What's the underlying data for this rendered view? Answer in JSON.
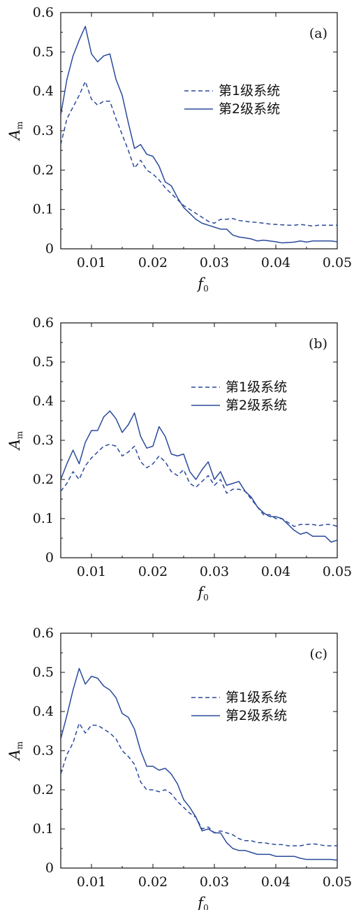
{
  "colors": {
    "line": "#2a4a9b",
    "axis": "#111111"
  },
  "chart_data": [
    {
      "type": "line",
      "panel_label": "(a)",
      "xlabel": "f0",
      "ylabel": "Am",
      "xlim": [
        0.005,
        0.05
      ],
      "ylim": [
        0,
        0.6
      ],
      "xticks": [
        "0.01",
        "0.02",
        "0.03",
        "0.04",
        "0.05"
      ],
      "yticks": [
        "0",
        "0.1",
        "0.2",
        "0.3",
        "0.4",
        "0.5",
        "0.6"
      ],
      "legend_position": "center-right",
      "series": [
        {
          "name": "第1级系统",
          "style": "dashed",
          "x": [
            0.005,
            0.006,
            0.007,
            0.008,
            0.009,
            0.01,
            0.011,
            0.012,
            0.013,
            0.014,
            0.015,
            0.016,
            0.017,
            0.018,
            0.019,
            0.02,
            0.021,
            0.022,
            0.023,
            0.024,
            0.025,
            0.026,
            0.027,
            0.028,
            0.029,
            0.03,
            0.031,
            0.032,
            0.033,
            0.034,
            0.035,
            0.036,
            0.037,
            0.038,
            0.039,
            0.04,
            0.041,
            0.042,
            0.043,
            0.044,
            0.045,
            0.046,
            0.047,
            0.048,
            0.049,
            0.05
          ],
          "y": [
            0.265,
            0.33,
            0.36,
            0.39,
            0.425,
            0.38,
            0.365,
            0.375,
            0.375,
            0.33,
            0.29,
            0.25,
            0.205,
            0.225,
            0.2,
            0.19,
            0.175,
            0.155,
            0.14,
            0.125,
            0.11,
            0.1,
            0.09,
            0.08,
            0.07,
            0.065,
            0.075,
            0.075,
            0.077,
            0.072,
            0.07,
            0.068,
            0.067,
            0.065,
            0.063,
            0.062,
            0.061,
            0.06,
            0.06,
            0.062,
            0.06,
            0.058,
            0.06,
            0.06,
            0.06,
            0.06
          ]
        },
        {
          "name": "第2级系统",
          "style": "solid",
          "x": [
            0.005,
            0.006,
            0.007,
            0.008,
            0.009,
            0.01,
            0.011,
            0.012,
            0.013,
            0.014,
            0.015,
            0.016,
            0.017,
            0.018,
            0.019,
            0.02,
            0.021,
            0.022,
            0.023,
            0.024,
            0.025,
            0.026,
            0.027,
            0.028,
            0.029,
            0.03,
            0.031,
            0.032,
            0.033,
            0.034,
            0.035,
            0.036,
            0.037,
            0.038,
            0.039,
            0.04,
            0.041,
            0.042,
            0.043,
            0.044,
            0.045,
            0.046,
            0.047,
            0.048,
            0.049,
            0.05
          ],
          "y": [
            0.34,
            0.43,
            0.49,
            0.53,
            0.565,
            0.495,
            0.475,
            0.49,
            0.495,
            0.43,
            0.39,
            0.32,
            0.255,
            0.265,
            0.24,
            0.235,
            0.21,
            0.17,
            0.16,
            0.13,
            0.105,
            0.09,
            0.075,
            0.065,
            0.06,
            0.055,
            0.05,
            0.05,
            0.035,
            0.03,
            0.028,
            0.025,
            0.02,
            0.022,
            0.02,
            0.018,
            0.015,
            0.016,
            0.017,
            0.02,
            0.017,
            0.02,
            0.02,
            0.02,
            0.02,
            0.018
          ]
        }
      ]
    },
    {
      "type": "line",
      "panel_label": "(b)",
      "xlabel": "f0",
      "ylabel": "Am",
      "xlim": [
        0.005,
        0.05
      ],
      "ylim": [
        0,
        0.6
      ],
      "xticks": [
        "0.01",
        "0.02",
        "0.03",
        "0.04",
        "0.05"
      ],
      "yticks": [
        "0",
        "0.1",
        "0.2",
        "0.3",
        "0.4",
        "0.5",
        "0.6"
      ],
      "legend_position": "center-right",
      "series": [
        {
          "name": "第1级系统",
          "style": "dashed",
          "x": [
            0.005,
            0.006,
            0.007,
            0.008,
            0.009,
            0.01,
            0.011,
            0.012,
            0.013,
            0.014,
            0.015,
            0.016,
            0.017,
            0.018,
            0.019,
            0.02,
            0.021,
            0.022,
            0.023,
            0.024,
            0.025,
            0.026,
            0.027,
            0.028,
            0.029,
            0.03,
            0.031,
            0.032,
            0.033,
            0.034,
            0.035,
            0.036,
            0.037,
            0.038,
            0.039,
            0.04,
            0.041,
            0.042,
            0.043,
            0.044,
            0.045,
            0.046,
            0.047,
            0.048,
            0.049,
            0.05
          ],
          "y": [
            0.17,
            0.19,
            0.22,
            0.2,
            0.235,
            0.255,
            0.27,
            0.285,
            0.29,
            0.285,
            0.26,
            0.27,
            0.285,
            0.245,
            0.23,
            0.24,
            0.26,
            0.245,
            0.22,
            0.21,
            0.225,
            0.19,
            0.18,
            0.195,
            0.21,
            0.185,
            0.2,
            0.165,
            0.175,
            0.175,
            0.17,
            0.15,
            0.13,
            0.11,
            0.11,
            0.1,
            0.1,
            0.09,
            0.08,
            0.085,
            0.085,
            0.085,
            0.082,
            0.085,
            0.085,
            0.08
          ]
        },
        {
          "name": "第2级系统",
          "style": "solid",
          "x": [
            0.005,
            0.006,
            0.007,
            0.008,
            0.009,
            0.01,
            0.011,
            0.012,
            0.013,
            0.014,
            0.015,
            0.016,
            0.017,
            0.018,
            0.019,
            0.02,
            0.021,
            0.022,
            0.023,
            0.024,
            0.025,
            0.026,
            0.027,
            0.028,
            0.029,
            0.03,
            0.031,
            0.032,
            0.033,
            0.034,
            0.035,
            0.036,
            0.037,
            0.038,
            0.039,
            0.04,
            0.041,
            0.042,
            0.043,
            0.044,
            0.045,
            0.046,
            0.047,
            0.048,
            0.049,
            0.05
          ],
          "y": [
            0.2,
            0.24,
            0.275,
            0.24,
            0.295,
            0.325,
            0.325,
            0.36,
            0.375,
            0.355,
            0.32,
            0.34,
            0.37,
            0.31,
            0.28,
            0.285,
            0.335,
            0.31,
            0.265,
            0.26,
            0.265,
            0.22,
            0.2,
            0.225,
            0.245,
            0.2,
            0.22,
            0.185,
            0.19,
            0.195,
            0.17,
            0.155,
            0.13,
            0.115,
            0.105,
            0.105,
            0.1,
            0.085,
            0.07,
            0.06,
            0.065,
            0.055,
            0.055,
            0.055,
            0.04,
            0.045
          ]
        }
      ]
    },
    {
      "type": "line",
      "panel_label": "(c)",
      "xlabel": "f0",
      "ylabel": "Am",
      "xlim": [
        0.005,
        0.05
      ],
      "ylim": [
        0,
        0.6
      ],
      "xticks": [
        "0.01",
        "0.02",
        "0.03",
        "0.04",
        "0.05"
      ],
      "yticks": [
        "0",
        "0.1",
        "0.2",
        "0.3",
        "0.4",
        "0.5",
        "0.6"
      ],
      "legend_position": "center-right",
      "series": [
        {
          "name": "第1级系统",
          "style": "dashed",
          "x": [
            0.005,
            0.006,
            0.007,
            0.008,
            0.009,
            0.01,
            0.011,
            0.012,
            0.013,
            0.014,
            0.015,
            0.016,
            0.017,
            0.018,
            0.019,
            0.02,
            0.021,
            0.022,
            0.023,
            0.024,
            0.025,
            0.026,
            0.027,
            0.028,
            0.029,
            0.03,
            0.031,
            0.032,
            0.033,
            0.034,
            0.035,
            0.036,
            0.037,
            0.038,
            0.039,
            0.04,
            0.041,
            0.042,
            0.043,
            0.044,
            0.045,
            0.046,
            0.047,
            0.048,
            0.049,
            0.05
          ],
          "y": [
            0.24,
            0.29,
            0.32,
            0.37,
            0.345,
            0.365,
            0.365,
            0.355,
            0.345,
            0.33,
            0.3,
            0.285,
            0.265,
            0.22,
            0.2,
            0.2,
            0.195,
            0.2,
            0.19,
            0.17,
            0.155,
            0.14,
            0.13,
            0.1,
            0.105,
            0.09,
            0.095,
            0.09,
            0.085,
            0.075,
            0.07,
            0.07,
            0.065,
            0.065,
            0.062,
            0.06,
            0.06,
            0.057,
            0.057,
            0.057,
            0.06,
            0.062,
            0.06,
            0.057,
            0.057,
            0.057
          ]
        },
        {
          "name": "第2级系统",
          "style": "solid",
          "x": [
            0.005,
            0.006,
            0.007,
            0.008,
            0.009,
            0.01,
            0.011,
            0.012,
            0.013,
            0.014,
            0.015,
            0.016,
            0.017,
            0.018,
            0.019,
            0.02,
            0.021,
            0.022,
            0.023,
            0.024,
            0.025,
            0.026,
            0.027,
            0.028,
            0.029,
            0.03,
            0.031,
            0.032,
            0.033,
            0.034,
            0.035,
            0.036,
            0.037,
            0.038,
            0.039,
            0.04,
            0.041,
            0.042,
            0.043,
            0.044,
            0.045,
            0.046,
            0.047,
            0.048,
            0.049,
            0.05
          ],
          "y": [
            0.33,
            0.39,
            0.455,
            0.51,
            0.47,
            0.49,
            0.485,
            0.465,
            0.455,
            0.435,
            0.395,
            0.385,
            0.355,
            0.3,
            0.26,
            0.26,
            0.25,
            0.255,
            0.24,
            0.215,
            0.175,
            0.155,
            0.13,
            0.095,
            0.1,
            0.09,
            0.09,
            0.065,
            0.05,
            0.045,
            0.045,
            0.04,
            0.035,
            0.035,
            0.035,
            0.03,
            0.03,
            0.03,
            0.03,
            0.025,
            0.022,
            0.022,
            0.022,
            0.022,
            0.022,
            0.02
          ]
        }
      ]
    }
  ]
}
